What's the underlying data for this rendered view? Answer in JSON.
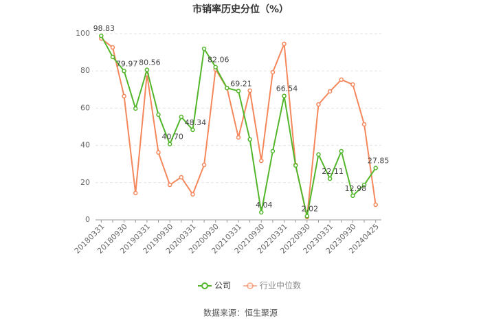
{
  "chart_data": {
    "type": "line",
    "title": "市销率历史分位（%）",
    "categories": [
      "20180331",
      null,
      "20180930",
      null,
      "20190331",
      null,
      "20190930",
      null,
      "20200331",
      null,
      "20200930",
      null,
      "20210331",
      null,
      "20210930",
      null,
      "20220331",
      null,
      "20220930",
      null,
      "20230331",
      null,
      "20230930",
      null,
      "20240425"
    ],
    "series": [
      {
        "name": "公司",
        "color": "#52b62a",
        "values": [
          98.83,
          87.5,
          79.97,
          59.8,
          80.56,
          56.5,
          40.7,
          55.3,
          48.34,
          91.9,
          82.06,
          70.8,
          69.21,
          43.2,
          4.04,
          36.9,
          66.54,
          29.2,
          2.02,
          35.1,
          22.11,
          36.9,
          12.98,
          18.8,
          27.85
        ],
        "value_labels": [
          "98.83",
          null,
          "79.97",
          null,
          "80.56",
          null,
          "40.70",
          null,
          "48.34",
          null,
          "82.06",
          null,
          "69.21",
          null,
          "4.04",
          null,
          "66.54",
          null,
          "2.02",
          null,
          "22.11",
          null,
          "12.98",
          null,
          "27.85"
        ]
      },
      {
        "name": "行业中位数",
        "color": "#f4875b",
        "values": [
          97.4,
          92.6,
          66.4,
          14.4,
          78.2,
          36.2,
          18.8,
          22.9,
          13.7,
          29.5,
          80.8,
          70.8,
          44.3,
          69.4,
          31.7,
          79.3,
          94.5,
          29.5,
          1.5,
          62.0,
          69.0,
          75.3,
          72.7,
          51.3,
          8.1
        ]
      }
    ],
    "ylim": [
      0,
      100
    ],
    "yticks": [
      0,
      20,
      40,
      60,
      80,
      100
    ],
    "grid": true,
    "legend": "bottom",
    "source": "数据来源：恒生聚源"
  }
}
